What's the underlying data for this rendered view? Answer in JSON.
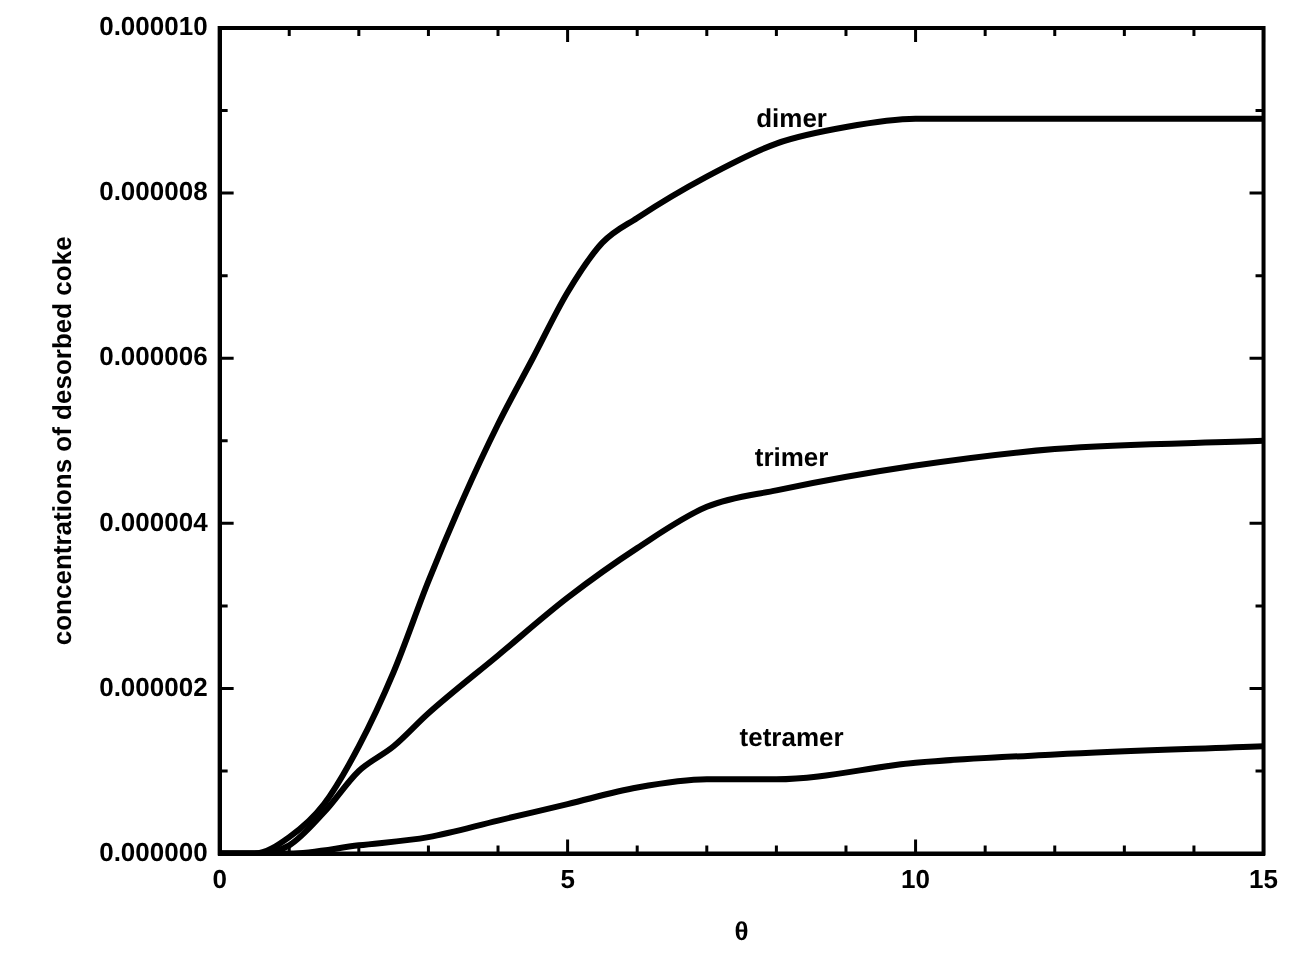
{
  "chart_data": {
    "type": "line",
    "xlabel": "θ",
    "ylabel": "concentrations of desorbed coke",
    "xlim": [
      0,
      15
    ],
    "ylim": [
      0,
      1e-05
    ],
    "xticks": [
      0,
      {
        "value": 1,
        "label": null
      },
      {
        "value": 2,
        "label": null
      },
      {
        "value": 3,
        "label": null
      },
      {
        "value": 4,
        "label": null
      },
      5,
      {
        "value": 6,
        "label": null
      },
      {
        "value": 7,
        "label": null
      },
      {
        "value": 8,
        "label": null
      },
      {
        "value": 9,
        "label": null
      },
      10,
      {
        "value": 11,
        "label": null
      },
      {
        "value": 12,
        "label": null
      },
      {
        "value": 13,
        "label": null
      },
      {
        "value": 14,
        "label": null
      },
      15
    ],
    "yticks": [
      {
        "value": 0,
        "label": "0.000000"
      },
      {
        "value": 1e-06,
        "label": null
      },
      {
        "value": 2e-06,
        "label": "0.000002"
      },
      {
        "value": 3e-06,
        "label": null
      },
      {
        "value": 4e-06,
        "label": "0.000004"
      },
      {
        "value": 5e-06,
        "label": null
      },
      {
        "value": 6e-06,
        "label": "0.000006"
      },
      {
        "value": 7e-06,
        "label": null
      },
      {
        "value": 8e-06,
        "label": "0.000008"
      },
      {
        "value": 9e-06,
        "label": null
      },
      {
        "value": 1e-05,
        "label": "0.000010"
      }
    ],
    "grid": false,
    "legend": false,
    "marker": "none",
    "line_style": "solid",
    "series": [
      {
        "name": "dimer",
        "color": "#000000",
        "x": [
          0,
          0.5,
          1,
          1.5,
          2,
          2.5,
          3,
          3.5,
          4,
          4.5,
          5,
          5.5,
          6,
          7,
          8,
          9,
          10,
          12,
          15
        ],
        "values": [
          0,
          0,
          2e-07,
          6e-07,
          1.3e-06,
          2.2e-06,
          3.3e-06,
          4.3e-06,
          5.2e-06,
          6e-06,
          6.8e-06,
          7.4e-06,
          7.7e-06,
          8.2e-06,
          8.6e-06,
          8.8e-06,
          8.9e-06,
          8.9e-06,
          8.9e-06
        ]
      },
      {
        "name": "trimer",
        "color": "#000000",
        "x": [
          0,
          0.5,
          1,
          1.5,
          2,
          2.5,
          3,
          4,
          5,
          6,
          7,
          8,
          10,
          12,
          15
        ],
        "values": [
          0,
          0,
          1e-07,
          5e-07,
          1e-06,
          1.3e-06,
          1.7e-06,
          2.4e-06,
          3.1e-06,
          3.7e-06,
          4.2e-06,
          4.4e-06,
          4.7e-06,
          4.9e-06,
          5e-06
        ]
      },
      {
        "name": "tetramer",
        "color": "#000000",
        "x": [
          0,
          1,
          2,
          3,
          4,
          5,
          6,
          7,
          8,
          10,
          12,
          15
        ],
        "values": [
          0,
          0,
          1e-07,
          2e-07,
          4e-07,
          6e-07,
          8e-07,
          9e-07,
          9e-07,
          1.1e-06,
          1.2e-06,
          1.3e-06
        ]
      }
    ]
  }
}
